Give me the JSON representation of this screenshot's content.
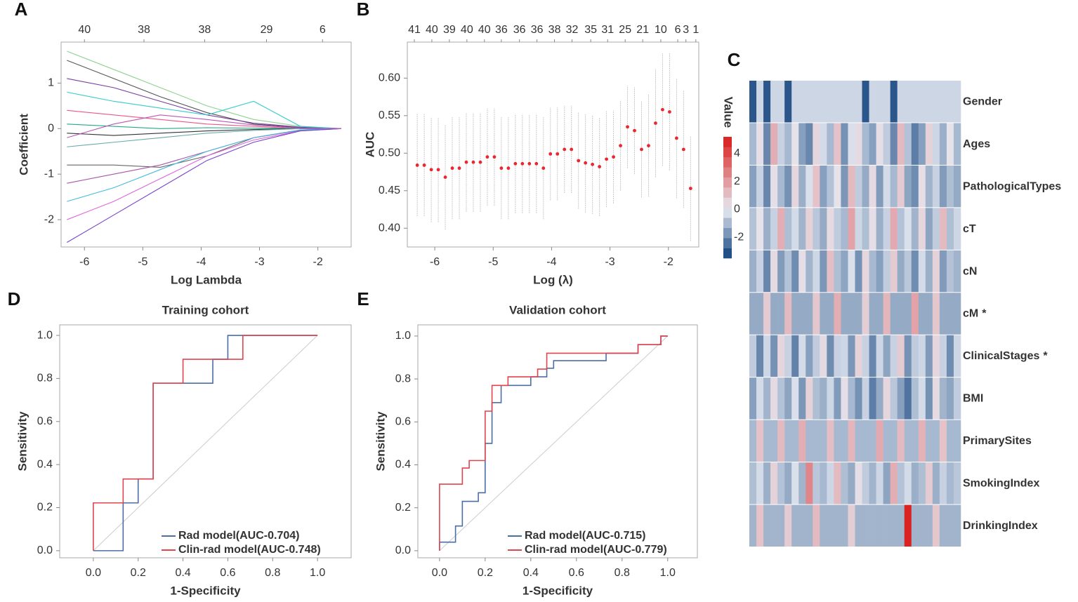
{
  "chart_data": [
    {
      "type": "line",
      "panel_label": "A",
      "xlabel": "Log Lambda",
      "ylabel": "Coefficient",
      "x": [
        -6.3,
        -5.5,
        -4.7,
        -3.9,
        -3.1,
        -2.3,
        -1.6
      ],
      "series": [
        {
          "color": "#8fd18f",
          "values": [
            1.7,
            1.3,
            0.9,
            0.5,
            0.2,
            0.05,
            0
          ]
        },
        {
          "color": "#555555",
          "values": [
            1.5,
            1.1,
            0.7,
            0.35,
            0.1,
            0.02,
            0
          ]
        },
        {
          "color": "#7b3fa0",
          "values": [
            1.1,
            0.9,
            0.6,
            0.3,
            0.12,
            0.03,
            0
          ]
        },
        {
          "color": "#33cccc",
          "values": [
            0.8,
            0.6,
            0.45,
            0.3,
            0.6,
            0.05,
            0
          ]
        },
        {
          "color": "#ee5588",
          "values": [
            0.4,
            0.3,
            0.2,
            0.1,
            0.05,
            0,
            0
          ]
        },
        {
          "color": "#22aa88",
          "values": [
            0.1,
            0.05,
            0,
            0.02,
            0.01,
            0,
            0
          ]
        },
        {
          "color": "#333333",
          "values": [
            -0.1,
            -0.15,
            -0.1,
            -0.05,
            -0.02,
            0,
            0
          ]
        },
        {
          "color": "#66aaaa",
          "values": [
            -0.4,
            -0.3,
            -0.2,
            -0.1,
            -0.04,
            0,
            0
          ]
        },
        {
          "color": "#666666",
          "values": [
            -0.8,
            -0.8,
            -0.85,
            -0.6,
            -0.2,
            -0.03,
            0
          ]
        },
        {
          "color": "#aa55aa",
          "values": [
            -1.2,
            -1,
            -0.8,
            -0.5,
            -0.2,
            -0.04,
            0
          ]
        },
        {
          "color": "#44bbdd",
          "values": [
            -1.6,
            -1.3,
            -0.9,
            -0.5,
            -0.2,
            -0.03,
            0
          ]
        },
        {
          "color": "#dd66dd",
          "values": [
            -2,
            -1.6,
            -1.1,
            -0.6,
            -0.25,
            -0.05,
            0
          ]
        },
        {
          "color": "#7744cc",
          "values": [
            -2.5,
            -1.9,
            -1.3,
            -0.7,
            -0.3,
            -0.05,
            0
          ]
        },
        {
          "color": "#bb55bb",
          "values": [
            -0.2,
            0.1,
            0.3,
            0.2,
            0.08,
            0.01,
            0
          ]
        }
      ],
      "xlim": [
        -6.4,
        -1.43
      ],
      "ylim": [
        -2.6,
        1.9
      ],
      "xticks": [
        -6,
        -5,
        -4,
        -3,
        -2
      ],
      "yticks": [
        -2,
        -1,
        0,
        1
      ],
      "x2ticks": [
        {
          "value": -6.0,
          "label": "40"
        },
        {
          "value": -4.98,
          "label": "38"
        },
        {
          "value": -3.94,
          "label": "38"
        },
        {
          "value": -2.88,
          "label": "29"
        },
        {
          "value": -1.92,
          "label": "6"
        }
      ]
    },
    {
      "type": "errorbar",
      "panel_label": "B",
      "xlabel": "Log (λ)",
      "ylabel": "AUC",
      "color": "#e8272e",
      "x": [
        -6.3,
        -6.18,
        -6.06,
        -5.94,
        -5.82,
        -5.7,
        -5.58,
        -5.46,
        -5.34,
        -5.22,
        -5.1,
        -4.98,
        -4.86,
        -4.74,
        -4.62,
        -4.5,
        -4.38,
        -4.26,
        -4.14,
        -4.02,
        -3.9,
        -3.78,
        -3.66,
        -3.54,
        -3.42,
        -3.3,
        -3.18,
        -3.06,
        -2.94,
        -2.82,
        -2.7,
        -2.58,
        -2.46,
        -2.34,
        -2.22,
        -2.1,
        -1.98,
        -1.86,
        -1.74,
        -1.62
      ],
      "values": [
        0.484,
        0.484,
        0.478,
        0.478,
        0.468,
        0.48,
        0.48,
        0.488,
        0.488,
        0.488,
        0.495,
        0.495,
        0.48,
        0.48,
        0.486,
        0.486,
        0.486,
        0.486,
        0.48,
        0.499,
        0.499,
        0.505,
        0.505,
        0.49,
        0.487,
        0.485,
        0.482,
        0.492,
        0.495,
        0.51,
        0.535,
        0.53,
        0.505,
        0.51,
        0.54,
        0.558,
        0.555,
        0.52,
        0.505,
        0.453
      ],
      "errors": [
        0.068,
        0.068,
        0.07,
        0.07,
        0.07,
        0.068,
        0.068,
        0.066,
        0.066,
        0.066,
        0.065,
        0.065,
        0.068,
        0.068,
        0.066,
        0.066,
        0.066,
        0.066,
        0.068,
        0.062,
        0.062,
        0.058,
        0.058,
        0.064,
        0.066,
        0.066,
        0.066,
        0.064,
        0.062,
        0.06,
        0.055,
        0.058,
        0.064,
        0.068,
        0.072,
        0.075,
        0.078,
        0.08,
        0.078,
        0.07
      ],
      "xlim": [
        -6.47,
        -1.48
      ],
      "ylim": [
        0.375,
        0.648
      ],
      "xticks": [
        -6,
        -5,
        -4,
        -3,
        -2
      ],
      "yticks": [
        {
          "value": 0.4,
          "label": "0.40"
        },
        {
          "value": 0.45,
          "label": "0.45"
        },
        {
          "value": 0.5,
          "label": "0.50"
        },
        {
          "value": 0.55,
          "label": "0.55"
        },
        {
          "value": 0.6,
          "label": "0.60"
        }
      ],
      "x2ticks": [
        {
          "value": -6.35,
          "label": "41"
        },
        {
          "value": -6.05,
          "label": "40"
        },
        {
          "value": -5.75,
          "label": "39"
        },
        {
          "value": -5.45,
          "label": "40"
        },
        {
          "value": -5.15,
          "label": "40"
        },
        {
          "value": -4.86,
          "label": "36"
        },
        {
          "value": -4.55,
          "label": "36"
        },
        {
          "value": -4.25,
          "label": "36"
        },
        {
          "value": -3.95,
          "label": "38"
        },
        {
          "value": -3.65,
          "label": "32"
        },
        {
          "value": -3.33,
          "label": "35"
        },
        {
          "value": -3.04,
          "label": "31"
        },
        {
          "value": -2.74,
          "label": "25"
        },
        {
          "value": -2.44,
          "label": "21"
        },
        {
          "value": -2.13,
          "label": "10"
        },
        {
          "value": -1.84,
          "label": "6"
        },
        {
          "value": -1.7,
          "label": "3"
        },
        {
          "value": -1.53,
          "label": "1"
        }
      ]
    },
    {
      "type": "heatmap",
      "panel_label": "C",
      "colorbar_label": "Value",
      "categories": [
        "Gender",
        "Ages",
        "PathologicalTypes",
        "cT",
        "cN",
        "cM",
        "ClinicalStages",
        "BMI",
        "PrimarySites",
        "SmokingIndex",
        "DrinkingIndex"
      ],
      "annotations": [
        null,
        null,
        null,
        null,
        null,
        "*",
        "*",
        null,
        null,
        null,
        null
      ],
      "values": [
        [
          -3,
          -0.4,
          -3,
          -0.4,
          -0.4,
          -3,
          -0.4,
          -0.4,
          -0.4,
          -0.4,
          -0.4,
          -0.4,
          -0.4,
          -0.4,
          -0.4,
          -0.4,
          -3,
          -0.4,
          -0.4,
          -0.4,
          -3,
          -0.4,
          -0.4,
          -0.4,
          -0.4,
          -0.4,
          -0.4,
          -0.4,
          -0.4,
          -0.4
        ],
        [
          -1,
          0.3,
          -2,
          1.5,
          -0.5,
          -1,
          0.2,
          -1.5,
          -2,
          0.5,
          -0.3,
          -1,
          1,
          -1.8,
          -0.2,
          0.4,
          -1,
          -1.5,
          0.3,
          -0.6,
          -2,
          1.2,
          -0.8,
          -2.2,
          -1.5,
          0.6,
          -0.4,
          -1.2,
          0.2,
          -1
        ],
        [
          -1.5,
          -0.5,
          -2,
          0.3,
          -1,
          -1.8,
          0.5,
          -1.2,
          -0.2,
          1,
          -1.5,
          -0.8,
          0.2,
          -1.7,
          1.2,
          -0.6,
          -1.3,
          0.4,
          -1.6,
          -0.3,
          -1,
          0.8,
          -1.4,
          -1.9,
          0.3,
          -1.1,
          -0.5,
          -1.6,
          -0.9,
          -1.3
        ],
        [
          -0.8,
          0.2,
          -1.2,
          -0.5,
          1.5,
          -0.9,
          -0.3,
          -1.1,
          0.6,
          -0.7,
          -1.3,
          0.4,
          -0.6,
          -1,
          1.8,
          -0.4,
          -0.9,
          0.3,
          -1.2,
          -0.5,
          1.6,
          -0.8,
          -0.2,
          -1.1,
          0.5,
          -1.4,
          -0.6,
          1.2,
          -0.9,
          -0.4
        ],
        [
          -1.2,
          -0.5,
          -2,
          0.4,
          -1.6,
          -0.8,
          -1.9,
          0.3,
          -1.1,
          -0.4,
          -1.7,
          1.1,
          -0.9,
          -1.4,
          -0.2,
          -1.8,
          0.5,
          -1,
          -1.5,
          -0.6,
          0.8,
          -1.3,
          -0.7,
          -1.9,
          -0.3,
          -1.2,
          0.6,
          -1.6,
          -0.8,
          -1.1
        ],
        [
          -1.3,
          -1.3,
          0.8,
          -1.3,
          -1.3,
          1.2,
          -1.3,
          -1.3,
          -1.3,
          0.9,
          -1.3,
          -1.3,
          1.5,
          -1.3,
          -1.3,
          -1.3,
          0.7,
          -1.3,
          -1.3,
          1.3,
          -1.3,
          -1.3,
          -1.3,
          1.8,
          -1.3,
          -1.3,
          0.9,
          -1.3,
          -1.3,
          -1.3
        ],
        [
          -0.6,
          -2,
          -0.4,
          -1.8,
          0.5,
          -0.5,
          -2.1,
          -0.3,
          -1.5,
          -0.6,
          0.4,
          -1.9,
          -0.5,
          -0.4,
          -1.7,
          0.6,
          -0.5,
          -2,
          -0.4,
          -1.4,
          -0.5,
          0.8,
          -1.8,
          -0.6,
          -0.4,
          -1.6,
          0.5,
          -0.5,
          -1.9,
          -0.4
        ],
        [
          -1.5,
          -0.3,
          -1.1,
          0.4,
          -0.8,
          -1.4,
          -0.2,
          -1.7,
          0.6,
          -0.9,
          -1.2,
          -0.4,
          -1.6,
          0.3,
          -1,
          -1.8,
          -0.5,
          -2.2,
          -1.3,
          0.5,
          -0.7,
          -1.5,
          -2.4,
          -0.9,
          -0.3,
          -1.8,
          0.4,
          -1.1,
          -1.4,
          -0.6
        ],
        [
          -1,
          1,
          -1,
          -1,
          1.2,
          -1,
          -1,
          1.5,
          -1,
          -1,
          -1,
          1.1,
          -1,
          -1,
          1.3,
          -1,
          -1,
          -1,
          1.6,
          -1,
          -1,
          1.2,
          -1,
          -1,
          1.4,
          -1,
          -1,
          1,
          -1,
          -1
        ],
        [
          -0.9,
          -0.3,
          -1.2,
          0.6,
          -0.8,
          -1.3,
          -0.2,
          -1.1,
          2.5,
          -0.7,
          -1,
          -0.4,
          1.2,
          -0.9,
          -1.3,
          0.3,
          -0.6,
          -1.1,
          -0.4,
          -1.4,
          1.5,
          -0.8,
          -0.3,
          -1.2,
          -0.9,
          0.8,
          -1.2,
          -0.5,
          -1,
          -0.7
        ],
        [
          -1.1,
          1,
          -1.1,
          -1.1,
          -1.1,
          0.8,
          -1.1,
          -1.1,
          -1.1,
          1.2,
          -1.1,
          -1.1,
          -1.1,
          -1.1,
          0.7,
          -1.1,
          -1.1,
          -1.1,
          -1.1,
          -1.1,
          -1.1,
          -1.1,
          5,
          -1.1,
          -1.1,
          -1.1,
          0.9,
          -1.1,
          -1.1,
          -1.1
        ]
      ],
      "clim": [
        -3.5,
        5.2
      ],
      "cticks": [
        -2,
        0,
        2,
        4
      ],
      "low_color": "#0b3d7a",
      "mid_color": "#e6eaf2",
      "high_color": "#d91a1a",
      "star_color": "#e8454f"
    },
    {
      "type": "line",
      "panel_label": "D",
      "title": "Training cohort",
      "xlabel": "1-Specificity",
      "ylabel": "Sensitivity",
      "diagonal": true,
      "legend": "lower right",
      "series": [
        {
          "name": "Rad model(AUC-0.704)",
          "color": "#4a6fa5",
          "x": [
            0,
            0.133,
            0.133,
            0.2,
            0.2,
            0.267,
            0.267,
            0.533,
            0.533,
            0.6,
            0.6,
            1
          ],
          "values": [
            0,
            0,
            0.222,
            0.222,
            0.333,
            0.333,
            0.778,
            0.778,
            0.889,
            0.889,
            1,
            1
          ]
        },
        {
          "name": "Clin-rad model(AUC-0.748)",
          "color": "#e0454f",
          "x": [
            0,
            0,
            0.133,
            0.133,
            0.267,
            0.267,
            0.4,
            0.4,
            0.667,
            0.667,
            1
          ],
          "values": [
            0,
            0.222,
            0.222,
            0.333,
            0.333,
            0.778,
            0.778,
            0.889,
            0.889,
            1,
            1
          ]
        }
      ],
      "xlim": [
        -0.15,
        1.15
      ],
      "ylim": [
        -0.033,
        1.049
      ],
      "xticks": [
        {
          "value": 0,
          "label": "0.0"
        },
        0.2,
        0.4,
        0.6,
        0.8,
        {
          "value": 1,
          "label": "1.0"
        }
      ],
      "yticks": [
        {
          "value": 0,
          "label": "0.0"
        },
        0.2,
        0.4,
        0.6,
        0.8,
        {
          "value": 1,
          "label": "1.0"
        }
      ]
    },
    {
      "type": "line",
      "panel_label": "E",
      "title": "Validation cohort",
      "xlabel": "1-Specificity",
      "ylabel": "Sensitivity",
      "diagonal": true,
      "legend": "lower right",
      "series": [
        {
          "name": "Rad model(AUC-0.715)",
          "color": "#4a6fa5",
          "x": [
            0,
            0,
            0.07,
            0.07,
            0.1,
            0.1,
            0.17,
            0.17,
            0.2,
            0.2,
            0.23,
            0.23,
            0.27,
            0.27,
            0.4,
            0.4,
            0.47,
            0.47,
            0.5,
            0.5,
            0.73,
            0.73,
            0.87,
            0.87,
            0.97,
            0.97,
            1
          ],
          "values": [
            0,
            0.04,
            0.04,
            0.115,
            0.115,
            0.23,
            0.23,
            0.27,
            0.27,
            0.5,
            0.5,
            0.69,
            0.69,
            0.77,
            0.77,
            0.81,
            0.81,
            0.85,
            0.85,
            0.885,
            0.885,
            0.92,
            0.92,
            0.96,
            0.96,
            1,
            1
          ]
        },
        {
          "name": "Clin-rad model(AUC-0.779)",
          "color": "#e0454f",
          "x": [
            0,
            0,
            0.1,
            0.1,
            0.13,
            0.13,
            0.2,
            0.2,
            0.23,
            0.23,
            0.3,
            0.3,
            0.43,
            0.43,
            0.47,
            0.47,
            0.87,
            0.87,
            0.97,
            0.97,
            1
          ],
          "values": [
            0,
            0.31,
            0.31,
            0.385,
            0.385,
            0.42,
            0.42,
            0.65,
            0.65,
            0.77,
            0.77,
            0.81,
            0.81,
            0.846,
            0.846,
            0.92,
            0.92,
            0.96,
            0.96,
            1,
            1
          ]
        }
      ],
      "xlim": [
        -0.095,
        1.13
      ],
      "ylim": [
        -0.033,
        1.052
      ],
      "xticks": [
        {
          "value": 0,
          "label": "0.0"
        },
        0.2,
        0.4,
        0.6,
        0.8,
        {
          "value": 1,
          "label": "1.0"
        }
      ],
      "yticks": [
        {
          "value": 0,
          "label": "0.0"
        },
        0.2,
        0.4,
        0.6,
        0.8,
        {
          "value": 1,
          "label": "1.0"
        }
      ]
    }
  ]
}
